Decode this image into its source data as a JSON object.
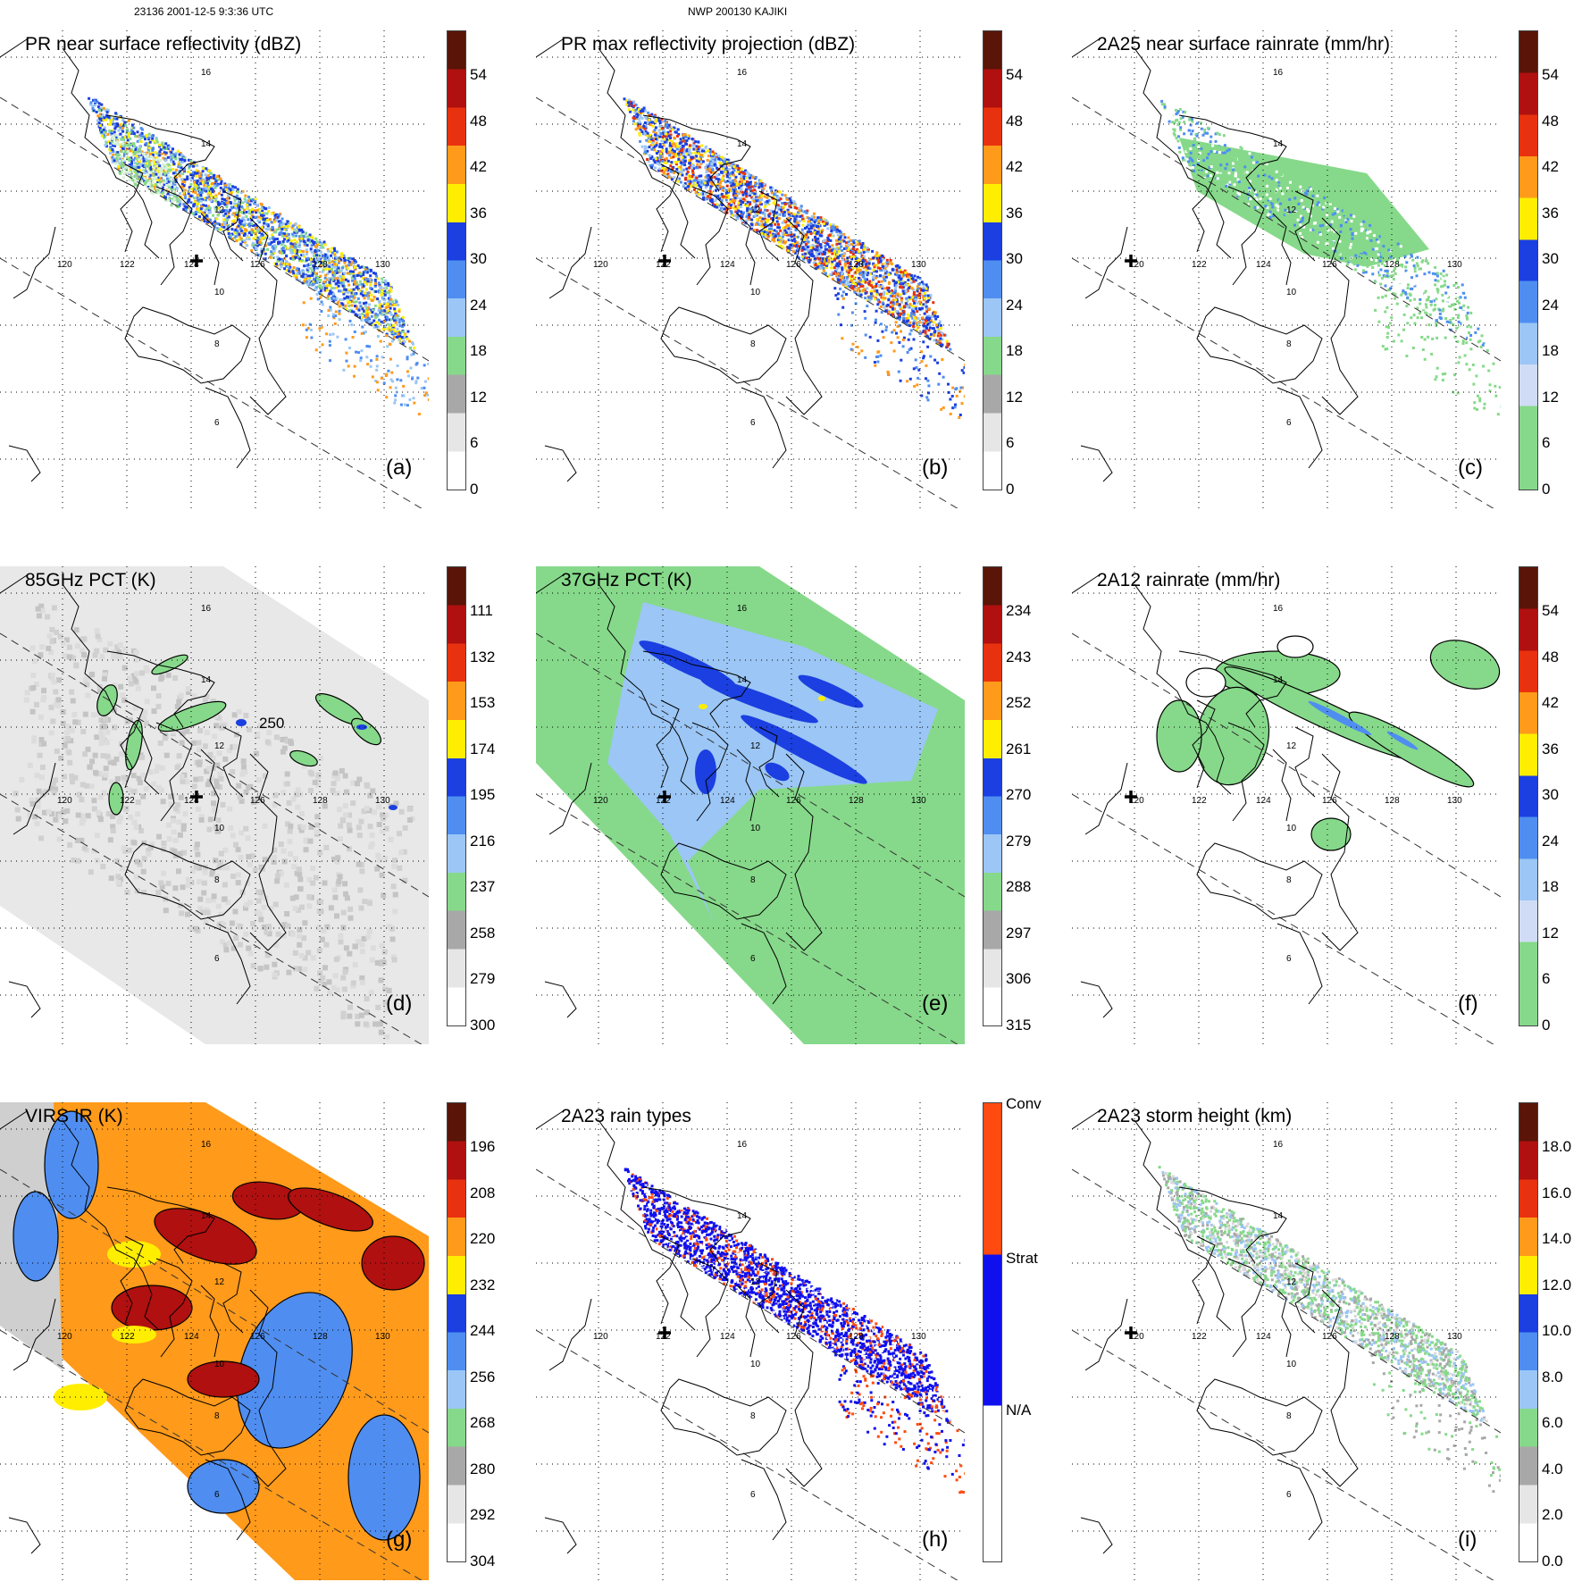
{
  "header": {
    "left": "23136 2001-12-5 9:3:36 UTC",
    "middle": "NWP 200130 KAJIKI"
  },
  "colors": {
    "lightgreen": "#86d98a",
    "gray": "#a8a8a8",
    "lightgray": "#d8d8d8",
    "lightblue": "#9bc6f5",
    "midblue": "#4f8ef0",
    "blue": "#1b3fe0",
    "yellow": "#ffee00",
    "orange": "#ff9a1a",
    "red": "#e8320f",
    "darkred": "#b01010",
    "maroon": "#5a1408"
  },
  "map": {
    "longitude_labels": [
      "120",
      "122",
      "124",
      "126",
      "128",
      "130"
    ],
    "latitude_labels": [
      "16",
      "14",
      "12",
      "10",
      "8",
      "6"
    ],
    "contour_label": "250"
  },
  "panels": [
    {
      "id": "a",
      "title": "PR near surface reflectivity (dBZ)",
      "label": "(a)",
      "colorbar": [
        "54",
        "48",
        "42",
        "36",
        "30",
        "24",
        "18",
        "12",
        "6",
        "0"
      ]
    },
    {
      "id": "b",
      "title": "PR max reflectivity projection (dBZ)",
      "label": "(b)",
      "colorbar": [
        "54",
        "48",
        "42",
        "36",
        "30",
        "24",
        "18",
        "12",
        "6",
        "0"
      ]
    },
    {
      "id": "c",
      "title": "2A25 near surface rainrate (mm/hr)",
      "label": "(c)",
      "colorbar": [
        "54",
        "48",
        "42",
        "36",
        "30",
        "24",
        "18",
        "12",
        "6",
        "0"
      ]
    },
    {
      "id": "d",
      "title": "85GHz PCT (K)",
      "label": "(d)",
      "colorbar": [
        "111",
        "132",
        "153",
        "174",
        "195",
        "216",
        "237",
        "258",
        "279",
        "300"
      ]
    },
    {
      "id": "e",
      "title": "37GHz PCT (K)",
      "label": "(e)",
      "colorbar": [
        "234",
        "243",
        "252",
        "261",
        "270",
        "279",
        "288",
        "297",
        "306",
        "315"
      ]
    },
    {
      "id": "f",
      "title": "2A12 rainrate (mm/hr)",
      "label": "(f)",
      "colorbar": [
        "54",
        "48",
        "42",
        "36",
        "30",
        "24",
        "18",
        "12",
        "6",
        "0"
      ]
    },
    {
      "id": "g",
      "title": "VIRS IR (K)",
      "label": "(g)",
      "colorbar": [
        "196",
        "208",
        "220",
        "232",
        "244",
        "256",
        "268",
        "280",
        "292",
        "304"
      ]
    },
    {
      "id": "h",
      "title": "2A23 rain types",
      "label": "(h)",
      "colorbar": [
        "Conv",
        "Strat",
        "N/A"
      ]
    },
    {
      "id": "i",
      "title": "2A23 storm height (km)",
      "label": "(i)",
      "colorbar": [
        "18.0",
        "16.0",
        "14.0",
        "12.0",
        "10.0",
        "8.0",
        "6.0",
        "4.0",
        "2.0",
        "0.0"
      ]
    }
  ]
}
